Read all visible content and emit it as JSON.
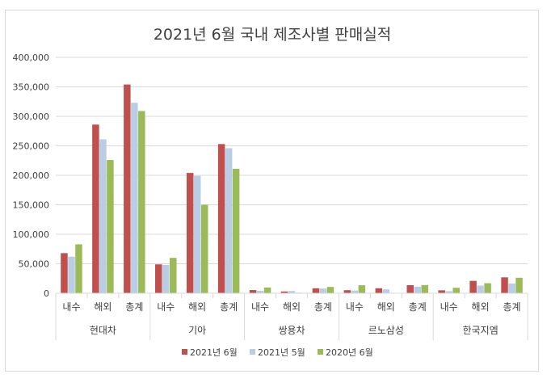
{
  "chart_data": {
    "type": "bar",
    "title": "2021년 6월 국내 제조사별 판매실적",
    "xlabel": "",
    "ylabel": "",
    "ylim": [
      0,
      400000
    ],
    "yticks": [
      "0",
      "50,000",
      "100,000",
      "150,000",
      "200,000",
      "250,000",
      "300,000",
      "350,000",
      "400,000"
    ],
    "grid": true,
    "legend_position": "bottom",
    "groups": [
      {
        "name": "현대차",
        "categories": [
          "내수",
          "해외",
          "총계"
        ]
      },
      {
        "name": "기아",
        "categories": [
          "내수",
          "해외",
          "총계"
        ]
      },
      {
        "name": "쌍용차",
        "categories": [
          "내수",
          "해외",
          "총계"
        ]
      },
      {
        "name": "르노삼성",
        "categories": [
          "내수",
          "해외",
          "총계"
        ]
      },
      {
        "name": "한국지엠",
        "categories": [
          "내수",
          "해외",
          "총계"
        ]
      }
    ],
    "series": [
      {
        "name": "2021년 6월",
        "color": "#c0504d",
        "values": [
          68000,
          286000,
          354000,
          49000,
          204000,
          253000,
          5400,
          3000,
          8400,
          5200,
          8500,
          13700,
          5000,
          21000,
          27000
        ]
      },
      {
        "name": "2021년 5월",
        "color": "#b9cde5",
        "values": [
          62000,
          261000,
          323000,
          48000,
          199000,
          246000,
          4200,
          3800,
          8000,
          4600,
          6500,
          11100,
          3600,
          13000,
          16600
        ]
      },
      {
        "name": "2020년 6월",
        "color": "#9bbb59",
        "values": [
          83000,
          226000,
          309000,
          60000,
          150000,
          211000,
          9800,
          900,
          10700,
          13600,
          300,
          13900,
          9300,
          17000,
          26300
        ]
      }
    ]
  }
}
